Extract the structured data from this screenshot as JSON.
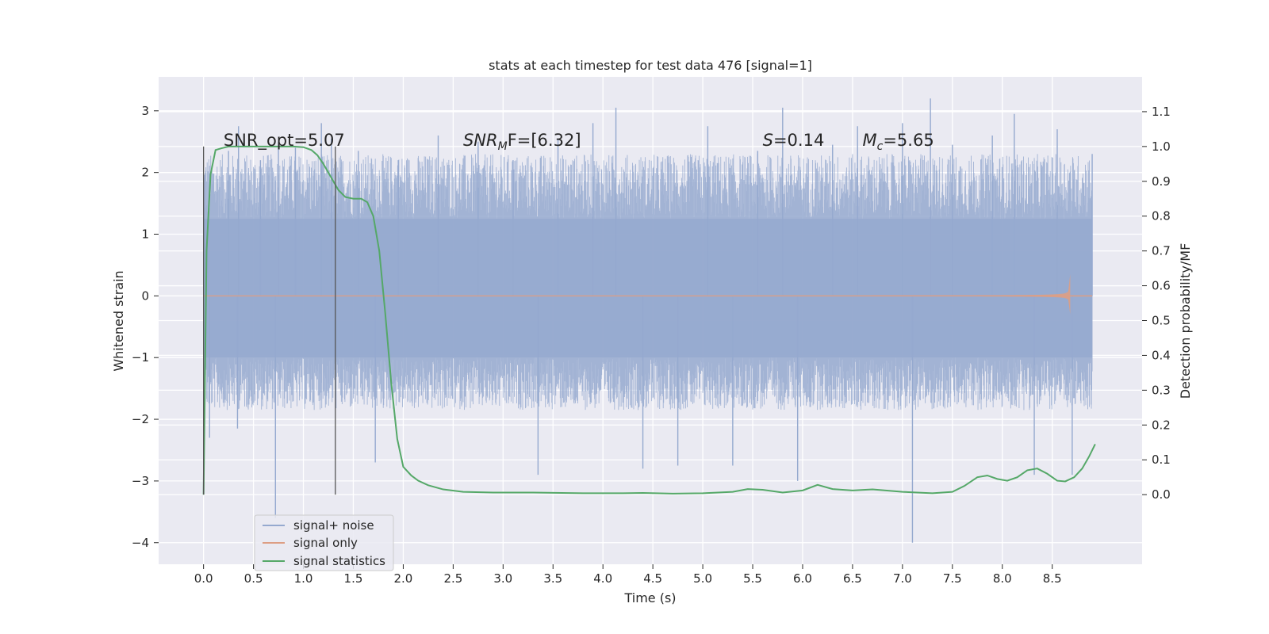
{
  "chart_data": {
    "type": "line",
    "title": "stats at each timestep for test data 476 [signal=1]",
    "xlabel": "Time (s)",
    "ylabel": "Whitened strain",
    "ylabel_right": "Detection probability/MF",
    "xlim": [
      -0.45,
      9.4
    ],
    "ylim": [
      -4.35,
      3.55
    ],
    "ylim_right": [
      -0.2,
      1.2
    ],
    "x_ticks": [
      0.0,
      0.5,
      1.0,
      1.5,
      2.0,
      2.5,
      3.0,
      3.5,
      4.0,
      4.5,
      5.0,
      5.5,
      6.0,
      6.5,
      7.0,
      7.5,
      8.0,
      8.5
    ],
    "x_tick_labels": [
      "0.0",
      "0.5",
      "1.0",
      "1.5",
      "2.0",
      "2.5",
      "3.0",
      "3.5",
      "4.0",
      "4.5",
      "5.0",
      "5.5",
      "6.0",
      "6.5",
      "7.0",
      "7.5",
      "8.0",
      "8.5"
    ],
    "y_ticks": [
      -4,
      -3,
      -2,
      -1,
      0,
      1,
      2,
      3
    ],
    "y_tick_labels": [
      "−4",
      "−3",
      "−2",
      "−1",
      "0",
      "1",
      "2",
      "3"
    ],
    "y_ticks_right": [
      0.0,
      0.1,
      0.2,
      0.3,
      0.4,
      0.5,
      0.6,
      0.7,
      0.8,
      0.9,
      1.0,
      1.1
    ],
    "y_tick_labels_right": [
      "0.0",
      "0.1",
      "0.2",
      "0.3",
      "0.4",
      "0.5",
      "0.6",
      "0.7",
      "0.8",
      "0.9",
      "1.0",
      "1.1"
    ],
    "grid": true,
    "legend_position": "lower-left",
    "vertical_markers": [
      0.0,
      1.32
    ],
    "annotations": {
      "snr_opt": {
        "text": "SNR_opt=5.07",
        "x": 0.2
      },
      "snr_mf": {
        "prefix": "SNR",
        "sub": "M",
        "suffix": "F=[6.32]",
        "x": 2.6
      },
      "s": {
        "prefix": "S",
        "suffix": "=0.14",
        "x": 5.6
      },
      "mc": {
        "prefix": "M",
        "sub": "c",
        "suffix": "=5.65",
        "x": 6.6
      }
    },
    "series": [
      {
        "name": "signal+ noise",
        "color": "#95a9cf",
        "x_range": [
          0.0,
          8.9
        ],
        "band": [
          -1.0,
          1.25
        ],
        "spikes": [
          [
            0.04,
            1.25
          ],
          [
            0.06,
            -2.3
          ],
          [
            0.25,
            2.35
          ],
          [
            0.34,
            -2.15
          ],
          [
            0.35,
            2.75
          ],
          [
            0.57,
            2.2
          ],
          [
            0.72,
            -3.6
          ],
          [
            0.75,
            2.5
          ],
          [
            0.92,
            2.4
          ],
          [
            1.18,
            2.8
          ],
          [
            1.28,
            2.55
          ],
          [
            1.55,
            2.35
          ],
          [
            1.72,
            -2.7
          ],
          [
            1.95,
            2.2
          ],
          [
            2.35,
            2.6
          ],
          [
            2.75,
            2.5
          ],
          [
            3.1,
            2.2
          ],
          [
            3.35,
            -2.9
          ],
          [
            3.55,
            2.55
          ],
          [
            3.9,
            2.8
          ],
          [
            4.13,
            3.05
          ],
          [
            4.4,
            -2.8
          ],
          [
            4.75,
            -2.75
          ],
          [
            5.05,
            2.75
          ],
          [
            5.3,
            -2.75
          ],
          [
            5.55,
            2.35
          ],
          [
            5.8,
            3.05
          ],
          [
            5.95,
            -3.0
          ],
          [
            6.3,
            2.45
          ],
          [
            6.55,
            2.75
          ],
          [
            7.0,
            2.8
          ],
          [
            7.1,
            -4.0
          ],
          [
            7.28,
            3.2
          ],
          [
            7.5,
            2.45
          ],
          [
            7.9,
            2.6
          ],
          [
            8.12,
            2.95
          ],
          [
            8.32,
            -2.9
          ],
          [
            8.55,
            2.7
          ],
          [
            8.7,
            -2.9
          ],
          [
            8.9,
            2.3
          ]
        ]
      },
      {
        "name": "signal only",
        "color": "#dd9e84",
        "x_range": [
          0.0,
          8.68
        ],
        "peak_amplitude": 0.55,
        "end_x": 8.68
      },
      {
        "name": "signal statistics",
        "color": "#55a868",
        "axis": "right",
        "x": [
          0.0,
          0.03,
          0.07,
          0.12,
          0.18,
          0.25,
          0.35,
          0.5,
          0.7,
          0.9,
          1.0,
          1.08,
          1.14,
          1.2,
          1.28,
          1.35,
          1.42,
          1.5,
          1.58,
          1.64,
          1.7,
          1.76,
          1.82,
          1.88,
          1.94,
          2.0,
          2.08,
          2.15,
          2.25,
          2.4,
          2.6,
          2.9,
          3.3,
          3.8,
          4.2,
          4.4,
          4.7,
          5.0,
          5.3,
          5.45,
          5.6,
          5.8,
          6.0,
          6.15,
          6.3,
          6.5,
          6.7,
          7.0,
          7.3,
          7.5,
          7.62,
          7.75,
          7.85,
          7.95,
          8.05,
          8.15,
          8.25,
          8.35,
          8.45,
          8.55,
          8.63,
          8.72,
          8.8,
          8.87,
          8.93
        ],
        "values": [
          0.0,
          0.7,
          0.92,
          0.99,
          0.995,
          1.0,
          1.0,
          1.0,
          1.0,
          1.0,
          0.998,
          0.99,
          0.975,
          0.95,
          0.91,
          0.875,
          0.855,
          0.85,
          0.85,
          0.84,
          0.8,
          0.7,
          0.52,
          0.32,
          0.16,
          0.08,
          0.055,
          0.04,
          0.027,
          0.015,
          0.008,
          0.006,
          0.006,
          0.004,
          0.004,
          0.005,
          0.003,
          0.004,
          0.008,
          0.016,
          0.014,
          0.006,
          0.012,
          0.028,
          0.016,
          0.012,
          0.015,
          0.008,
          0.004,
          0.008,
          0.025,
          0.05,
          0.055,
          0.045,
          0.04,
          0.05,
          0.07,
          0.075,
          0.06,
          0.04,
          0.038,
          0.05,
          0.075,
          0.11,
          0.145
        ]
      }
    ]
  }
}
